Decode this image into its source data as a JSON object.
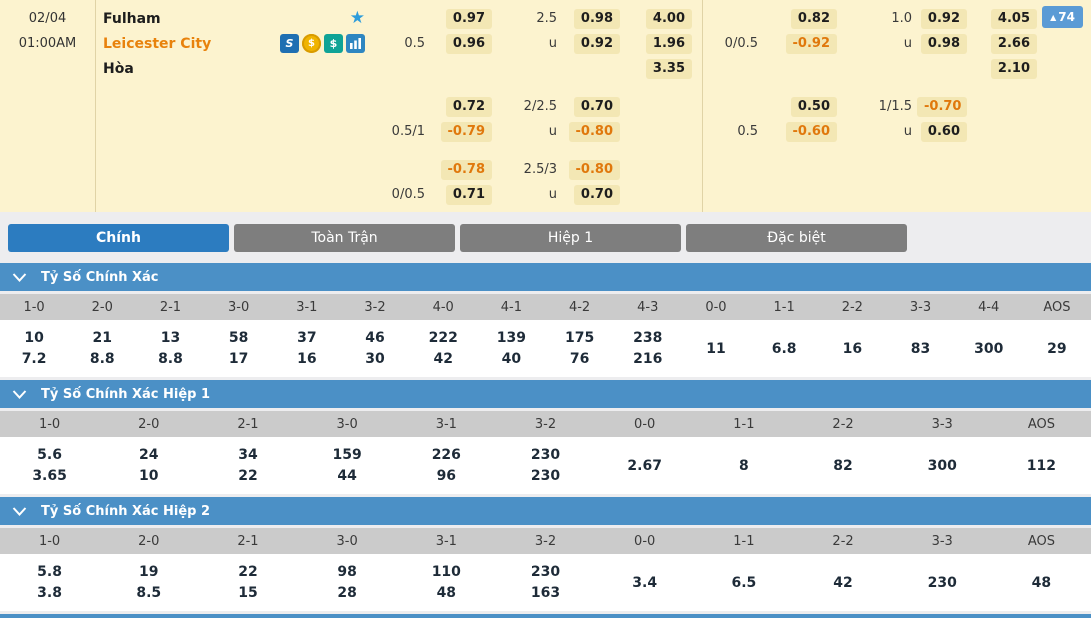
{
  "colors": {
    "page_bg": "#EDEDEF",
    "panel_bg": "#FCF3CF",
    "chip_bg": "#F3E7B4",
    "negative": "#E0780C",
    "team_away": "#E8820C",
    "tab_active": "#2C7CC0",
    "tab_inactive": "#7E7E7E",
    "section_header": "#4B90C6",
    "table_header": "#CBCBCB",
    "fav_button": "#5B9BD5"
  },
  "match": {
    "date": "02/04",
    "time": "01:00AM",
    "home_team": "Fulham",
    "away_team": "Leicester City",
    "draw_label": "Hòa",
    "favorites": {
      "arrow": "▲",
      "count": "74"
    },
    "icons": {
      "favorite_star": "★",
      "s_badge": "S",
      "coin_dollar": "$",
      "cash_dollar": "$"
    }
  },
  "odds_rows": [
    {
      "left": {
        "hdp_label": "",
        "hdp": "0.97",
        "ou_label": "2.5",
        "ou": "0.98",
        "x12": "4.00"
      },
      "right": {
        "hdp_label": "",
        "hdp": "0.82",
        "ou_label": "1.0",
        "ou": "0.92",
        "x12": "4.05"
      }
    },
    {
      "left": {
        "hdp_label": "0.5",
        "hdp": "0.96",
        "ou_label": "u",
        "ou": "0.92",
        "x12": "1.96"
      },
      "right": {
        "hdp_label": "0/0.5",
        "hdp": "-0.92",
        "ou_label": "u",
        "ou": "0.98",
        "x12": "2.66"
      }
    },
    {
      "left": {
        "hdp_label": "",
        "hdp": "",
        "ou_label": "",
        "ou": "",
        "x12": "3.35"
      },
      "right": {
        "hdp_label": "",
        "hdp": "",
        "ou_label": "",
        "ou": "",
        "x12": "2.10"
      }
    },
    {
      "left": {
        "hdp_label": "",
        "hdp": "0.72",
        "ou_label": "2/2.5",
        "ou": "0.70",
        "x12": ""
      },
      "right": {
        "hdp_label": "",
        "hdp": "0.50",
        "ou_label": "1/1.5",
        "ou": "-0.70",
        "x12": ""
      }
    },
    {
      "left": {
        "hdp_label": "0.5/1",
        "hdp": "-0.79",
        "ou_label": "u",
        "ou": "-0.80",
        "x12": ""
      },
      "right": {
        "hdp_label": "0.5",
        "hdp": "-0.60",
        "ou_label": "u",
        "ou": "0.60",
        "x12": ""
      }
    },
    {
      "left": {
        "hdp_label": "",
        "hdp": "-0.78",
        "ou_label": "2.5/3",
        "ou": "-0.80",
        "x12": ""
      },
      "right": {
        "hdp_label": "",
        "hdp": "",
        "ou_label": "",
        "ou": "",
        "x12": ""
      }
    },
    {
      "left": {
        "hdp_label": "0/0.5",
        "hdp": "0.71",
        "ou_label": "u",
        "ou": "0.70",
        "x12": ""
      },
      "right": {
        "hdp_label": "",
        "hdp": "",
        "ou_label": "",
        "ou": "",
        "x12": ""
      }
    }
  ],
  "tabs": [
    {
      "label": "Chính",
      "active": true
    },
    {
      "label": "Toàn Trận",
      "active": false
    },
    {
      "label": "Hiệp 1",
      "active": false
    },
    {
      "label": "Đặc biệt",
      "active": false
    }
  ],
  "sections": [
    {
      "title": "Tỷ Số Chính Xác",
      "columns": [
        "1-0",
        "2-0",
        "2-1",
        "3-0",
        "3-1",
        "3-2",
        "4-0",
        "4-1",
        "4-2",
        "4-3",
        "0-0",
        "1-1",
        "2-2",
        "3-3",
        "4-4",
        "AOS"
      ],
      "values": [
        [
          "10",
          "7.2"
        ],
        [
          "21",
          "8.8"
        ],
        [
          "13",
          "8.8"
        ],
        [
          "58",
          "17"
        ],
        [
          "37",
          "16"
        ],
        [
          "46",
          "30"
        ],
        [
          "222",
          "42"
        ],
        [
          "139",
          "40"
        ],
        [
          "175",
          "76"
        ],
        [
          "238",
          "216"
        ],
        [
          "11"
        ],
        [
          "6.8"
        ],
        [
          "16"
        ],
        [
          "83"
        ],
        [
          "300"
        ],
        [
          "29"
        ]
      ]
    },
    {
      "title": "Tỷ Số Chính Xác Hiệp 1",
      "columns": [
        "1-0",
        "2-0",
        "2-1",
        "3-0",
        "3-1",
        "3-2",
        "0-0",
        "1-1",
        "2-2",
        "3-3",
        "AOS"
      ],
      "values": [
        [
          "5.6",
          "3.65"
        ],
        [
          "24",
          "10"
        ],
        [
          "34",
          "22"
        ],
        [
          "159",
          "44"
        ],
        [
          "226",
          "96"
        ],
        [
          "230",
          "230"
        ],
        [
          "2.67"
        ],
        [
          "8"
        ],
        [
          "82"
        ],
        [
          "300"
        ],
        [
          "112"
        ]
      ]
    },
    {
      "title": "Tỷ Số Chính Xác Hiệp 2",
      "columns": [
        "1-0",
        "2-0",
        "2-1",
        "3-0",
        "3-1",
        "3-2",
        "0-0",
        "1-1",
        "2-2",
        "3-3",
        "AOS"
      ],
      "values": [
        [
          "5.8",
          "3.8"
        ],
        [
          "19",
          "8.5"
        ],
        [
          "22",
          "15"
        ],
        [
          "98",
          "28"
        ],
        [
          "110",
          "48"
        ],
        [
          "230",
          "163"
        ],
        [
          "3.4"
        ],
        [
          "6.5"
        ],
        [
          "42"
        ],
        [
          "230"
        ],
        [
          "48"
        ]
      ]
    }
  ]
}
